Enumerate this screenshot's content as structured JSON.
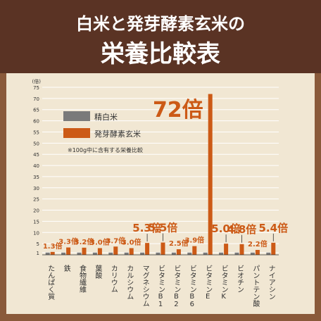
{
  "header": {
    "title_line1": "白米と発芽酵素玄米の",
    "title_line2": "栄養比較表"
  },
  "colors": {
    "frame": "#8a5a3a",
    "header_bg": "#5a3324",
    "panel_bg": "#f1e7d3",
    "grid": "#ffffff",
    "white_rice": "#7a7a7a",
    "germinated_rice": "#cc5a16",
    "ratio_text": "#cc5a16",
    "axis_text": "#333333",
    "header_text": "#ffffff"
  },
  "chart_data": {
    "type": "bar",
    "y_unit_label": "(倍)",
    "ylim": [
      0,
      75
    ],
    "yticks": [
      1,
      5,
      10,
      15,
      20,
      25,
      30,
      35,
      40,
      45,
      50,
      55,
      60,
      65,
      70,
      75
    ],
    "grid": true,
    "legend_placement": "top-left",
    "note": "※100g中に含有する栄養比較",
    "categories": [
      "たんぱく質",
      "鉄",
      "食物繊維",
      "葉酸",
      "カリウム",
      "カルシウム",
      "マグネシウム",
      "ビタミンB1",
      "ビタミンB2",
      "ビタミンB6",
      "ビタミンE",
      "ビタミンK",
      "ビオチン",
      "パントテン酸",
      "ナイアシン"
    ],
    "series": [
      {
        "name": "精白米",
        "color": "#7a7a7a",
        "values": [
          1,
          1,
          1,
          1,
          1,
          1,
          1,
          1,
          1,
          1,
          1,
          1,
          1,
          1,
          1
        ]
      },
      {
        "name": "発芽酵素玄米",
        "color": "#cc5a16",
        "values": [
          1.3,
          3.3,
          3.2,
          3.0,
          3.7,
          3.0,
          5.3,
          5.5,
          2.5,
          3.9,
          72,
          5.0,
          4.8,
          2.2,
          5.4
        ]
      }
    ],
    "data_labels": [
      "1.3倍",
      "3.3倍",
      "3.2倍",
      "3.0倍",
      "3.7倍",
      "3.0倍",
      "5.3倍",
      "5.5倍",
      "2.5倍",
      "3.9倍",
      "72倍",
      "5.0倍",
      "4.8倍",
      "2.2倍",
      "5.4倍"
    ],
    "label_size": [
      "s",
      "s",
      "s",
      "s",
      "s",
      "s",
      "l",
      "l",
      "s",
      "s",
      "xl",
      "l",
      "l",
      "s",
      "l"
    ]
  }
}
